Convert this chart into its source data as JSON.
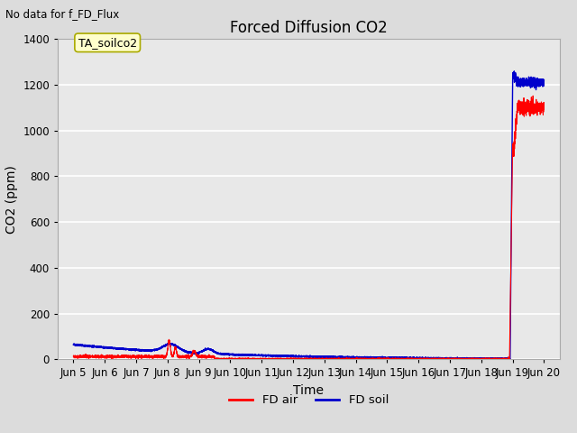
{
  "title": "Forced Diffusion CO2",
  "no_data_text": "No data for f_FD_Flux",
  "annotation_text": "TA_soilco2",
  "xlabel": "Time",
  "ylabel": "CO2 (ppm)",
  "ylim": [
    0,
    1400
  ],
  "xlim_days": [
    4.5,
    20.5
  ],
  "yticks": [
    0,
    200,
    400,
    600,
    800,
    1000,
    1200,
    1400
  ],
  "xtick_labels": [
    "Jun 5",
    "Jun 6",
    "Jun 7",
    "Jun 8",
    "Jun 9",
    "Jun 10",
    "Jun 11",
    "Jun 12",
    "Jun 13",
    "Jun 14",
    "Jun 15",
    "Jun 16",
    "Jun 17",
    "Jun 18",
    "Jun 19",
    "Jun 20"
  ],
  "xtick_positions": [
    5,
    6,
    7,
    8,
    9,
    10,
    11,
    12,
    13,
    14,
    15,
    16,
    17,
    18,
    19,
    20
  ],
  "bg_color": "#dcdcdc",
  "plot_bg_color": "#e8e8e8",
  "grid_color": "#ffffff",
  "fd_air_color": "#ff0000",
  "fd_soil_color": "#0000cc",
  "legend_labels": [
    "FD air",
    "FD soil"
  ],
  "title_fontsize": 12,
  "axis_label_fontsize": 10,
  "tick_fontsize": 8.5,
  "annotation_fontsize": 9
}
